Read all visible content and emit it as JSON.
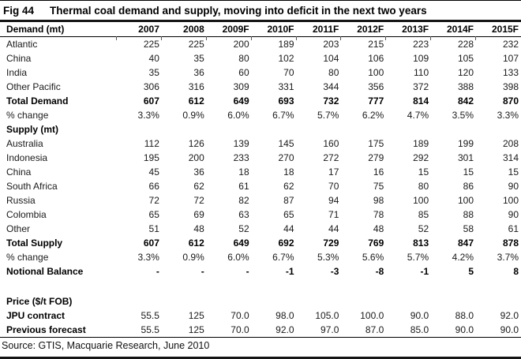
{
  "title": {
    "fig_label": "Fig 44",
    "heading": "Thermal coal demand and supply, moving into deficit in the next two years"
  },
  "source_note": "Source: GTIS, Macquarie Research, June 2010",
  "colors": {
    "negative": "#e50000",
    "text": "#000000",
    "rule": "#151515"
  },
  "chart_data": {
    "type": "table",
    "title": "Thermal coal demand and supply, moving into deficit in the next two years",
    "columns": [
      "Demand (mt)",
      "2007",
      "2008",
      "2009F",
      "2010F",
      "2011F",
      "2012F",
      "2013F",
      "2014F",
      "2015F"
    ],
    "rows": [
      {
        "label": "Atlantic",
        "style": "normal",
        "values": [
          "225",
          "225",
          "200",
          "189",
          "203",
          "215",
          "223",
          "228",
          "232"
        ]
      },
      {
        "label": "China",
        "style": "normal",
        "values": [
          "40",
          "35",
          "80",
          "102",
          "104",
          "106",
          "109",
          "105",
          "107"
        ]
      },
      {
        "label": "India",
        "style": "normal",
        "values": [
          "35",
          "36",
          "60",
          "70",
          "80",
          "100",
          "110",
          "120",
          "133"
        ]
      },
      {
        "label": "Other Pacific",
        "style": "normal",
        "values": [
          "306",
          "316",
          "309",
          "331",
          "344",
          "356",
          "372",
          "388",
          "398"
        ]
      },
      {
        "label": "Total Demand",
        "style": "total",
        "values": [
          "607",
          "612",
          "649",
          "693",
          "732",
          "777",
          "814",
          "842",
          "870"
        ]
      },
      {
        "label": "% change",
        "style": "normal",
        "values": [
          "3.3%",
          "0.9%",
          "6.0%",
          "6.7%",
          "5.7%",
          "6.2%",
          "4.7%",
          "3.5%",
          "3.3%"
        ]
      },
      {
        "label": "Supply (mt)",
        "style": "section",
        "values": [
          "",
          "",
          "",
          "",
          "",
          "",
          "",
          "",
          ""
        ]
      },
      {
        "label": "Australia",
        "style": "normal",
        "values": [
          "112",
          "126",
          "139",
          "145",
          "160",
          "175",
          "189",
          "199",
          "208"
        ]
      },
      {
        "label": "Indonesia",
        "style": "normal",
        "values": [
          "195",
          "200",
          "233",
          "270",
          "272",
          "279",
          "292",
          "301",
          "314"
        ]
      },
      {
        "label": "China",
        "style": "normal",
        "values": [
          "45",
          "36",
          "18",
          "18",
          "17",
          "16",
          "15",
          "15",
          "15"
        ]
      },
      {
        "label": "South Africa",
        "style": "normal",
        "values": [
          "66",
          "62",
          "61",
          "62",
          "70",
          "75",
          "80",
          "86",
          "90"
        ]
      },
      {
        "label": "Russia",
        "style": "normal",
        "values": [
          "72",
          "72",
          "82",
          "87",
          "94",
          "98",
          "100",
          "100",
          "100"
        ]
      },
      {
        "label": "Colombia",
        "style": "normal",
        "values": [
          "65",
          "69",
          "63",
          "65",
          "71",
          "78",
          "85",
          "88",
          "90"
        ]
      },
      {
        "label": "Other",
        "style": "normal",
        "values": [
          "51",
          "48",
          "52",
          "44",
          "44",
          "48",
          "52",
          "58",
          "61"
        ]
      },
      {
        "label": "Total Supply",
        "style": "total",
        "values": [
          "607",
          "612",
          "649",
          "692",
          "729",
          "769",
          "813",
          "847",
          "878"
        ]
      },
      {
        "label": "% change",
        "style": "normal",
        "values": [
          "3.3%",
          "0.9%",
          "6.0%",
          "6.7%",
          "5.3%",
          "5.6%",
          "5.7%",
          "4.2%",
          "3.7%"
        ]
      },
      {
        "label": "Notional Balance",
        "style": "balance",
        "values": [
          "-",
          "-",
          "-",
          "-1",
          "-3",
          "-8",
          "-1",
          "5",
          "8"
        ]
      },
      {
        "label": "",
        "style": "spacer",
        "values": []
      },
      {
        "label": "Price ($/t FOB)",
        "style": "section",
        "values": [
          "",
          "",
          "",
          "",
          "",
          "",
          "",
          "",
          ""
        ]
      },
      {
        "label": "JPU contract",
        "style": "price",
        "values": [
          "55.5",
          "125",
          "70.0",
          "98.0",
          "105.0",
          "100.0",
          "90.0",
          "88.0",
          "92.0"
        ]
      },
      {
        "label": "Previous forecast",
        "style": "price",
        "values": [
          "55.5",
          "125",
          "70.0",
          "92.0",
          "97.0",
          "87.0",
          "85.0",
          "90.0",
          "90.0"
        ]
      }
    ]
  }
}
